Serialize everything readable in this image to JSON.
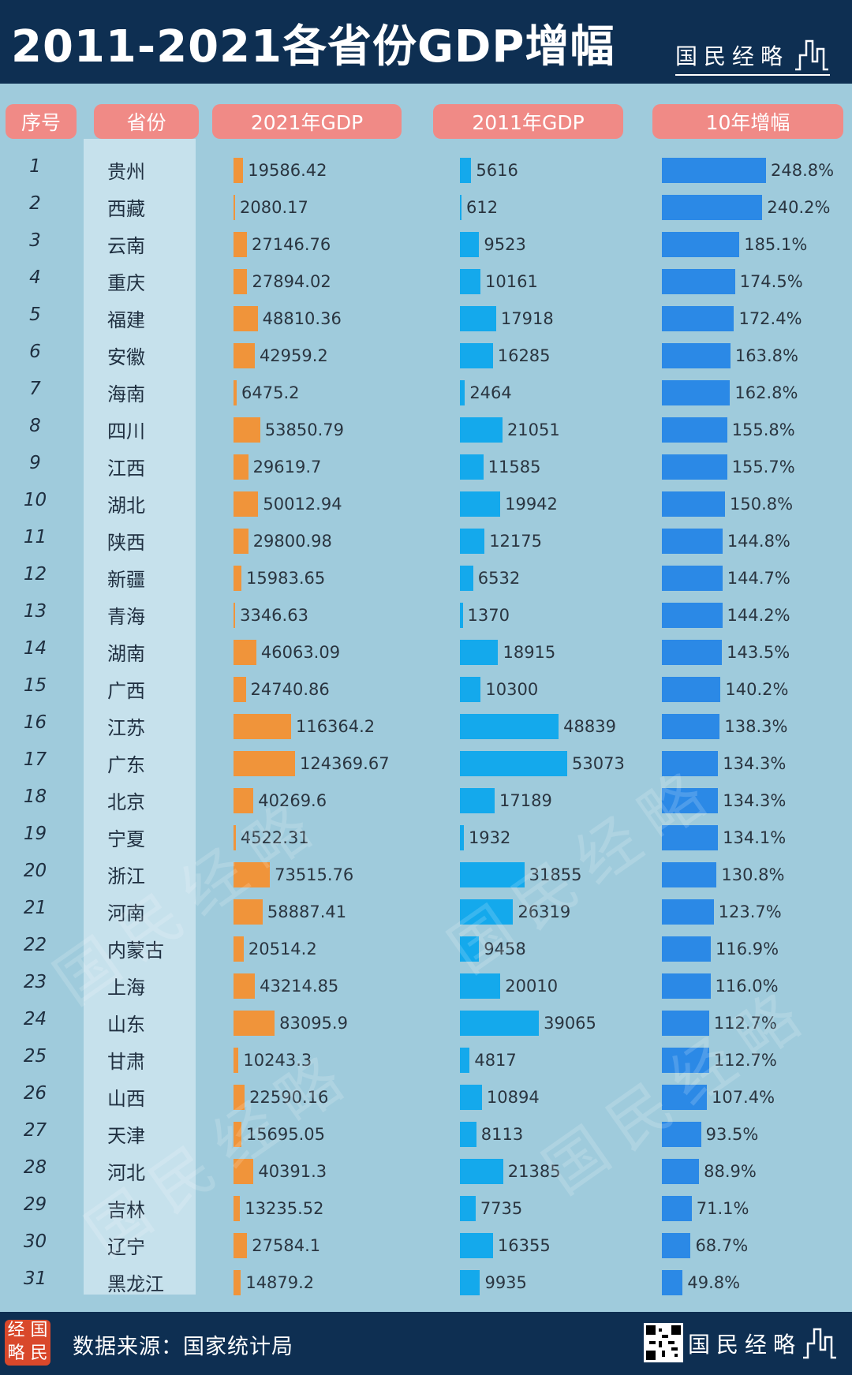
{
  "header": {
    "title": "2011-2021各省份GDP增幅",
    "brand": "国民经略"
  },
  "columns": {
    "rank": "序号",
    "province": "省份",
    "gdp2021": "2021年GDP",
    "gdp2011": "2011年GDP",
    "growth": "10年增幅"
  },
  "footer": {
    "source": "数据来源：国家统计局",
    "brand": "国民经略",
    "seal_chars": [
      "经",
      "国",
      "略",
      "民"
    ]
  },
  "watermark": "国民经略",
  "colors": {
    "header_bg": "#0e2f52",
    "bg": "#9fcbdc",
    "gdp2021_bar": "#f0943a",
    "gdp2011_bar": "#14a9ec",
    "growth_bar": "#2b89e6",
    "column_header": "#f08a86"
  },
  "chart_data": {
    "type": "table",
    "rows": [
      {
        "rank": "1",
        "province": "贵州",
        "gdp2021": "19586.42",
        "gdp2011": "5616",
        "growth": "248.8%"
      },
      {
        "rank": "2",
        "province": "西藏",
        "gdp2021": "2080.17",
        "gdp2011": "612",
        "growth": "240.2%"
      },
      {
        "rank": "3",
        "province": "云南",
        "gdp2021": "27146.76",
        "gdp2011": "9523",
        "growth": "185.1%"
      },
      {
        "rank": "4",
        "province": "重庆",
        "gdp2021": "27894.02",
        "gdp2011": "10161",
        "growth": "174.5%"
      },
      {
        "rank": "5",
        "province": "福建",
        "gdp2021": "48810.36",
        "gdp2011": "17918",
        "growth": "172.4%"
      },
      {
        "rank": "6",
        "province": "安徽",
        "gdp2021": "42959.2",
        "gdp2011": "16285",
        "growth": "163.8%"
      },
      {
        "rank": "7",
        "province": "海南",
        "gdp2021": "6475.2",
        "gdp2011": "2464",
        "growth": "162.8%"
      },
      {
        "rank": "8",
        "province": "四川",
        "gdp2021": "53850.79",
        "gdp2011": "21051",
        "growth": "155.8%"
      },
      {
        "rank": "9",
        "province": "江西",
        "gdp2021": "29619.7",
        "gdp2011": "11585",
        "growth": "155.7%"
      },
      {
        "rank": "10",
        "province": "湖北",
        "gdp2021": "50012.94",
        "gdp2011": "19942",
        "growth": "150.8%"
      },
      {
        "rank": "11",
        "province": "陕西",
        "gdp2021": "29800.98",
        "gdp2011": "12175",
        "growth": "144.8%"
      },
      {
        "rank": "12",
        "province": "新疆",
        "gdp2021": "15983.65",
        "gdp2011": "6532",
        "growth": "144.7%"
      },
      {
        "rank": "13",
        "province": "青海",
        "gdp2021": "3346.63",
        "gdp2011": "1370",
        "growth": "144.2%"
      },
      {
        "rank": "14",
        "province": "湖南",
        "gdp2021": "46063.09",
        "gdp2011": "18915",
        "growth": "143.5%"
      },
      {
        "rank": "15",
        "province": "广西",
        "gdp2021": "24740.86",
        "gdp2011": "10300",
        "growth": "140.2%"
      },
      {
        "rank": "16",
        "province": "江苏",
        "gdp2021": "116364.2",
        "gdp2011": "48839",
        "growth": "138.3%"
      },
      {
        "rank": "17",
        "province": "广东",
        "gdp2021": "124369.67",
        "gdp2011": "53073",
        "growth": "134.3%"
      },
      {
        "rank": "18",
        "province": "北京",
        "gdp2021": "40269.6",
        "gdp2011": "17189",
        "growth": "134.3%"
      },
      {
        "rank": "19",
        "province": "宁夏",
        "gdp2021": "4522.31",
        "gdp2011": "1932",
        "growth": "134.1%"
      },
      {
        "rank": "20",
        "province": "浙江",
        "gdp2021": "73515.76",
        "gdp2011": "31855",
        "growth": "130.8%"
      },
      {
        "rank": "21",
        "province": "河南",
        "gdp2021": "58887.41",
        "gdp2011": "26319",
        "growth": "123.7%"
      },
      {
        "rank": "22",
        "province": "内蒙古",
        "gdp2021": "20514.2",
        "gdp2011": "9458",
        "growth": "116.9%"
      },
      {
        "rank": "23",
        "province": "上海",
        "gdp2021": "43214.85",
        "gdp2011": "20010",
        "growth": "116.0%"
      },
      {
        "rank": "24",
        "province": "山东",
        "gdp2021": "83095.9",
        "gdp2011": "39065",
        "growth": "112.7%"
      },
      {
        "rank": "25",
        "province": "甘肃",
        "gdp2021": "10243.3",
        "gdp2011": "4817",
        "growth": "112.7%"
      },
      {
        "rank": "26",
        "province": "山西",
        "gdp2021": "22590.16",
        "gdp2011": "10894",
        "growth": "107.4%"
      },
      {
        "rank": "27",
        "province": "天津",
        "gdp2021": "15695.05",
        "gdp2011": "8113",
        "growth": "93.5%"
      },
      {
        "rank": "28",
        "province": "河北",
        "gdp2021": "40391.3",
        "gdp2011": "21385",
        "growth": "88.9%"
      },
      {
        "rank": "29",
        "province": "吉林",
        "gdp2021": "13235.52",
        "gdp2011": "7735",
        "growth": "71.1%"
      },
      {
        "rank": "30",
        "province": "辽宁",
        "gdp2021": "27584.1",
        "gdp2011": "16355",
        "growth": "68.7%"
      },
      {
        "rank": "31",
        "province": "黑龙江",
        "gdp2021": "14879.2",
        "gdp2011": "9935",
        "growth": "49.8%"
      }
    ]
  }
}
